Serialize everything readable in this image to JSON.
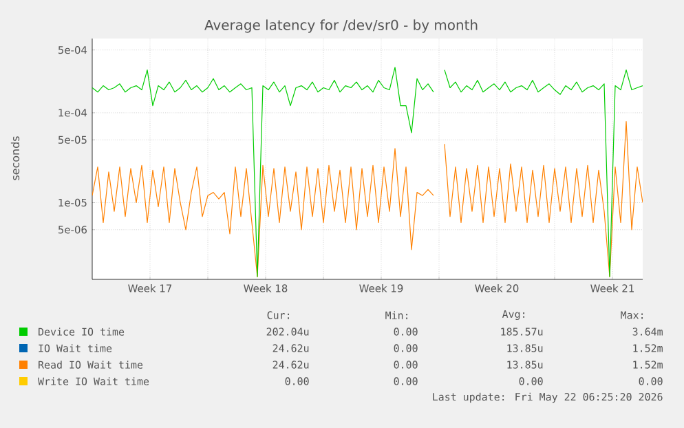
{
  "chart_data": {
    "type": "line",
    "title": "Average latency for /dev/sr0 - by month",
    "ylabel": "seconds",
    "log": "y",
    "grid": true,
    "legend": "bottom",
    "xlim": [
      "2026-04-20T00:00",
      "2026-05-23T08:00"
    ],
    "xticks": [
      {
        "value": "2026-04-23T12:00",
        "label": "Week 17"
      },
      {
        "value": "2026-04-27T00:00",
        "label": null
      },
      {
        "value": "2026-04-30T12:00",
        "label": "Week 18"
      },
      {
        "value": "2026-05-04T00:00",
        "label": null
      },
      {
        "value": "2026-05-07T12:00",
        "label": "Week 19"
      },
      {
        "value": "2026-05-11T00:00",
        "label": null
      },
      {
        "value": "2026-05-14T12:00",
        "label": "Week 20"
      },
      {
        "value": "2026-05-18T00:00",
        "label": null
      },
      {
        "value": "2026-05-21T12:00",
        "label": "Week 21"
      }
    ],
    "ylim": [
      1.4e-06,
      0.00067
    ],
    "yticks": [
      {
        "value": 5e-06,
        "label": "5e-06"
      },
      {
        "value": 1e-05,
        "label": "1e-05"
      },
      {
        "value": 5e-05,
        "label": "5e-05"
      },
      {
        "value": 0.0001,
        "label": "1e-04"
      },
      {
        "value": 0.0005,
        "label": "5e-04"
      }
    ],
    "x": [
      "2026-04-20T00:00",
      "2026-04-20T08:00",
      "2026-04-20T16:00",
      "2026-04-21T00:00",
      "2026-04-21T08:00",
      "2026-04-21T16:00",
      "2026-04-22T00:00",
      "2026-04-22T08:00",
      "2026-04-22T16:00",
      "2026-04-23T00:00",
      "2026-04-23T08:00",
      "2026-04-23T16:00",
      "2026-04-24T00:00",
      "2026-04-24T08:00",
      "2026-04-24T16:00",
      "2026-04-25T00:00",
      "2026-04-25T08:00",
      "2026-04-25T16:00",
      "2026-04-26T00:00",
      "2026-04-26T08:00",
      "2026-04-26T16:00",
      "2026-04-27T00:00",
      "2026-04-27T08:00",
      "2026-04-27T16:00",
      "2026-04-28T00:00",
      "2026-04-28T08:00",
      "2026-04-28T16:00",
      "2026-04-29T00:00",
      "2026-04-29T08:00",
      "2026-04-29T16:00",
      "2026-04-30T00:00",
      "2026-04-30T08:00",
      "2026-04-30T16:00",
      "2026-05-01T00:00",
      "2026-05-01T08:00",
      "2026-05-01T16:00",
      "2026-05-02T00:00",
      "2026-05-02T08:00",
      "2026-05-02T16:00",
      "2026-05-03T00:00",
      "2026-05-03T08:00",
      "2026-05-03T16:00",
      "2026-05-04T00:00",
      "2026-05-04T08:00",
      "2026-05-04T16:00",
      "2026-05-05T00:00",
      "2026-05-05T08:00",
      "2026-05-05T16:00",
      "2026-05-06T00:00",
      "2026-05-06T08:00",
      "2026-05-06T16:00",
      "2026-05-07T00:00",
      "2026-05-07T08:00",
      "2026-05-07T16:00",
      "2026-05-08T00:00",
      "2026-05-08T08:00",
      "2026-05-08T16:00",
      "2026-05-09T00:00",
      "2026-05-09T08:00",
      "2026-05-09T16:00",
      "2026-05-10T00:00",
      "2026-05-10T08:00",
      "2026-05-10T16:00",
      "2026-05-11T00:00",
      "2026-05-11T08:00",
      "2026-05-11T16:00",
      "2026-05-12T00:00",
      "2026-05-12T08:00",
      "2026-05-12T16:00",
      "2026-05-13T00:00",
      "2026-05-13T08:00",
      "2026-05-13T16:00",
      "2026-05-14T00:00",
      "2026-05-14T08:00",
      "2026-05-14T16:00",
      "2026-05-15T00:00",
      "2026-05-15T08:00",
      "2026-05-15T16:00",
      "2026-05-16T00:00",
      "2026-05-16T08:00",
      "2026-05-16T16:00",
      "2026-05-17T00:00",
      "2026-05-17T08:00",
      "2026-05-17T16:00",
      "2026-05-18T00:00",
      "2026-05-18T08:00",
      "2026-05-18T16:00",
      "2026-05-19T00:00",
      "2026-05-19T08:00",
      "2026-05-19T16:00",
      "2026-05-20T00:00",
      "2026-05-20T08:00",
      "2026-05-20T16:00",
      "2026-05-21T00:00",
      "2026-05-21T08:00",
      "2026-05-21T16:00",
      "2026-05-22T00:00",
      "2026-05-22T08:00",
      "2026-05-22T16:00",
      "2026-05-23T00:00",
      "2026-05-23T08:00"
    ],
    "series": [
      {
        "name": "Device IO time",
        "color": "#00cc00",
        "values": [
          0.00019,
          0.00017,
          0.0002,
          0.00018,
          0.00019,
          0.00021,
          0.00017,
          0.00019,
          0.0002,
          0.00018,
          0.0003,
          0.00012,
          0.0002,
          0.00018,
          0.00022,
          0.00017,
          0.00019,
          0.00023,
          0.00018,
          0.0002,
          0.00017,
          0.00019,
          0.00024,
          0.00018,
          0.0002,
          0.00017,
          0.00019,
          0.00021,
          0.00018,
          0.00019,
          1.5e-06,
          0.0002,
          0.00018,
          0.00022,
          0.00017,
          0.0002,
          0.00012,
          0.00019,
          0.0002,
          0.00018,
          0.00022,
          0.00017,
          0.00019,
          0.00018,
          0.00023,
          0.00017,
          0.0002,
          0.00019,
          0.00022,
          0.00018,
          0.0002,
          0.00017,
          0.00023,
          0.00019,
          0.00018,
          0.00032,
          0.00012,
          0.00012,
          6e-05,
          0.00024,
          0.00018,
          0.00021,
          0.00017,
          null,
          0.0003,
          0.00019,
          0.00022,
          0.00017,
          0.0002,
          0.00018,
          0.00023,
          0.00017,
          0.00019,
          0.00021,
          0.00018,
          0.00022,
          0.00017,
          0.00019,
          0.0002,
          0.00018,
          0.00023,
          0.00017,
          0.00019,
          0.00021,
          0.00018,
          0.00016,
          0.0002,
          0.00018,
          0.00022,
          0.00017,
          0.00019,
          0.0002,
          0.00018,
          0.00021,
          1.5e-06,
          0.0002,
          0.00018,
          0.0003,
          0.00018,
          0.00019,
          0.0002
        ]
      },
      {
        "name": "IO Wait time",
        "color": "#0066b3",
        "values": [
          null,
          null,
          null,
          null,
          null,
          null,
          null,
          null,
          null,
          null,
          null,
          null,
          null,
          null,
          null,
          null,
          null,
          null,
          null,
          null,
          null,
          null,
          null,
          null,
          null,
          null,
          null,
          null,
          null,
          null,
          null,
          null,
          null,
          null,
          null,
          null,
          null,
          null,
          null,
          null,
          null,
          null,
          null,
          null,
          null,
          null,
          null,
          null,
          null,
          null,
          null,
          null,
          null,
          null,
          null,
          null,
          null,
          null,
          null,
          null,
          null,
          null,
          null,
          null,
          null,
          null,
          null,
          null,
          null,
          null,
          null,
          null,
          null,
          null,
          null,
          null,
          null,
          null,
          null,
          null,
          null,
          null,
          null,
          null,
          null,
          null,
          null,
          null,
          null,
          null,
          null,
          null,
          null,
          null,
          null,
          null,
          null,
          null,
          null,
          null,
          null
        ]
      },
      {
        "name": "Read IO Wait time",
        "color": "#ff8000",
        "values": [
          1.2e-05,
          2.5e-05,
          6e-06,
          2.2e-05,
          8e-06,
          2.5e-05,
          7e-06,
          2.4e-05,
          1e-05,
          2.6e-05,
          6e-06,
          2.3e-05,
          9e-06,
          2.5e-05,
          6e-06,
          2.4e-05,
          1e-05,
          5e-06,
          1.3e-05,
          2.5e-05,
          7e-06,
          1.2e-05,
          1.3e-05,
          1.1e-05,
          1.3e-05,
          4.5e-06,
          2.5e-05,
          7e-06,
          2.4e-05,
          6e-06,
          1.5e-06,
          2.6e-05,
          7e-06,
          2.4e-05,
          6e-06,
          2.5e-05,
          8e-06,
          2.2e-05,
          5e-06,
          2.5e-05,
          7e-06,
          2.4e-05,
          6e-06,
          2.6e-05,
          8e-06,
          2.3e-05,
          6e-06,
          2.5e-05,
          5e-06,
          2.4e-05,
          7e-06,
          2.6e-05,
          6e-06,
          2.5e-05,
          8e-06,
          4e-05,
          7e-06,
          2.5e-05,
          3e-06,
          1.3e-05,
          1.2e-05,
          1.4e-05,
          1.2e-05,
          null,
          4.5e-05,
          7e-06,
          2.5e-05,
          6e-06,
          2.4e-05,
          8e-06,
          2.6e-05,
          6e-06,
          2.5e-05,
          7e-06,
          2.4e-05,
          6e-06,
          2.7e-05,
          8e-06,
          2.5e-05,
          6e-06,
          2.3e-05,
          7e-06,
          2.6e-05,
          6e-06,
          2.4e-05,
          8e-06,
          2.5e-05,
          6e-06,
          2.4e-05,
          7e-06,
          2.6e-05,
          6e-06,
          2.3e-05,
          8e-06,
          1.5e-06,
          2.5e-05,
          6e-06,
          8e-05,
          5e-06,
          2.5e-05,
          1e-05
        ]
      },
      {
        "name": "Write IO Wait time",
        "color": "#ffcc00",
        "values": [
          null,
          null,
          null,
          null,
          null,
          null,
          null,
          null,
          null,
          null,
          null,
          null,
          null,
          null,
          null,
          null,
          null,
          null,
          null,
          null,
          null,
          null,
          null,
          null,
          null,
          null,
          null,
          null,
          null,
          null,
          null,
          null,
          null,
          null,
          null,
          null,
          null,
          null,
          null,
          null,
          null,
          null,
          null,
          null,
          null,
          null,
          null,
          null,
          null,
          null,
          null,
          null,
          null,
          null,
          null,
          null,
          null,
          null,
          null,
          null,
          null,
          null,
          null,
          null,
          null,
          null,
          null,
          null,
          null,
          null,
          null,
          null,
          null,
          null,
          null,
          null,
          null,
          null,
          null,
          null,
          null,
          null,
          null,
          null,
          null,
          null,
          null,
          null,
          null,
          null,
          null,
          null,
          null,
          null,
          null,
          null,
          null,
          null,
          null,
          null,
          null
        ]
      }
    ],
    "annotations": [
      "Cur:",
      "Min:",
      "Avg:",
      "Max:",
      "202.04u",
      "0.00",
      "185.57u",
      "3.64m",
      "24.62u",
      "0.00",
      "13.85u",
      "1.52m",
      "24.62u",
      "0.00",
      "13.85u",
      "1.52m",
      "0.00",
      "0.00",
      "0.00",
      "0.00",
      "Last update: Fri May 22 06:25:20 2026"
    ]
  }
}
